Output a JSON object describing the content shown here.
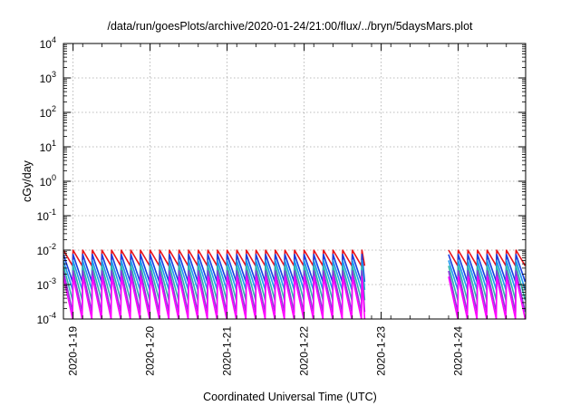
{
  "chart_data": {
    "type": "line",
    "title": "/data/run/goesPlots/archive/2020-01-24/21:00/flux/../bryn/5daysMars.plot",
    "xlabel": "Coordinated Universal Time (UTC)",
    "ylabel": "cGy/day",
    "x_scale": "time",
    "xlim": [
      "2020-01-18T21:00",
      "2020-01-24T21:00"
    ],
    "x_ticks": [
      "2020-1-19",
      "2020-1-20",
      "2020-1-21",
      "2020-1-22",
      "2020-1-23",
      "2020-1-24"
    ],
    "y_scale": "log",
    "ylim": [
      0.0001,
      10000
    ],
    "y_ticks": [
      {
        "base": "10",
        "exp": "-4"
      },
      {
        "base": "10",
        "exp": "-3"
      },
      {
        "base": "10",
        "exp": "-2"
      },
      {
        "base": "10",
        "exp": "-1"
      },
      {
        "base": "10",
        "exp": "0"
      },
      {
        "base": "10",
        "exp": "1"
      },
      {
        "base": "10",
        "exp": "2"
      },
      {
        "base": "10",
        "exp": "3"
      },
      {
        "base": "10",
        "exp": "4"
      }
    ],
    "grid": true,
    "legend": "none",
    "pattern": "sawtooth, one drop every 3 hours, drops grow through the Mars shadow",
    "segments": [
      {
        "start": "2020-01-18T21:00",
        "end": "2020-01-22T19:00"
      },
      {
        "start": "2020-01-23T21:00",
        "end": "2020-01-24T21:00"
      }
    ],
    "gap": {
      "start": "2020-01-22T19:00",
      "end": "2020-01-23T21:00"
    },
    "series": [
      {
        "color": "#e8141c",
        "peak": 0.01,
        "min": 0.0035
      },
      {
        "color": "#1a3fe0",
        "peak": 0.0075,
        "min": 0.0012
      },
      {
        "color": "#1e9af0",
        "peak": 0.005,
        "min": 0.0007
      },
      {
        "color": "#2bb8a8",
        "peak": 0.0035,
        "min": 0.00035
      },
      {
        "color": "#8a3ad8",
        "peak": 0.0025,
        "min": 0.00016
      },
      {
        "color": "#ff00ff",
        "peak": 0.0017,
        "min": 0.0001
      }
    ]
  }
}
